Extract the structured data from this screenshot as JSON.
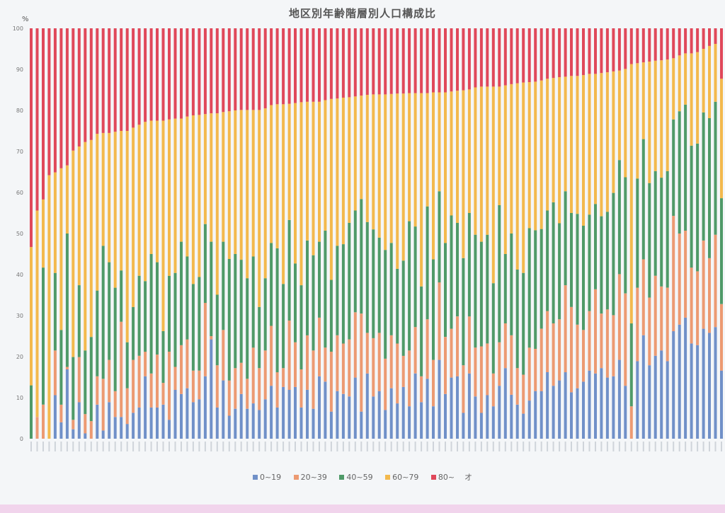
{
  "chart_data": {
    "type": "bar",
    "stacked": true,
    "title": "地区別年齢階層別人口構成比",
    "ylabel": "%",
    "xlabel": "",
    "ylim": [
      0,
      100
    ],
    "yticks": [
      "0",
      "10",
      "20",
      "30",
      "40",
      "50",
      "60",
      "70",
      "80",
      "90",
      "100"
    ],
    "legend_position": "bottom",
    "legend_suffix": "オ",
    "colors": {
      "0~19": "#7090c8",
      "20~39": "#ec9a72",
      "40~59": "#4f9a68",
      "60~79": "#f3b94d",
      "80~": "#e0485a"
    },
    "series_names": [
      "0~19",
      "20~39",
      "40~59",
      "60~79",
      "80~"
    ],
    "bars": [
      [
        0,
        0,
        13,
        33.7,
        53.3
      ],
      [
        0,
        5.3,
        0,
        50.3,
        44.4
      ],
      [
        0,
        8.3,
        33.4,
        16.6,
        41.7
      ],
      [
        0,
        0,
        0,
        64.2,
        35.8
      ],
      [
        10.6,
        10.9,
        18.9,
        24.5,
        35.1
      ],
      [
        4,
        4.3,
        18.2,
        39.4,
        34.1
      ],
      [
        16.9,
        0.6,
        32.5,
        16.6,
        33.4
      ],
      [
        2.3,
        2.3,
        15.3,
        50.3,
        29.8
      ],
      [
        8.9,
        11,
        17.5,
        33.8,
        28.8
      ],
      [
        1.3,
        4.7,
        15.5,
        50.8,
        27.7
      ],
      [
        0,
        4.3,
        20.5,
        48,
        27.2
      ],
      [
        8.3,
        6.9,
        20.9,
        38.2,
        25.7
      ],
      [
        2,
        12.6,
        32.4,
        27.5,
        25.5
      ],
      [
        8.9,
        10.3,
        23.8,
        31.5,
        25.5
      ],
      [
        5.3,
        6.3,
        25.2,
        38,
        25.2
      ],
      [
        5.3,
        23.2,
        12.5,
        34,
        25
      ],
      [
        3.6,
        8.7,
        11.2,
        51.5,
        25
      ],
      [
        6.3,
        12.9,
        12.9,
        43.7,
        24.2
      ],
      [
        7.6,
        12.6,
        19.5,
        36.8,
        23.5
      ],
      [
        15.2,
        6,
        17.2,
        38.8,
        22.8
      ],
      [
        7.6,
        8.3,
        29.1,
        32.5,
        22.5
      ],
      [
        7.6,
        12.9,
        22.5,
        34.5,
        22.5
      ],
      [
        8.3,
        5.3,
        12.6,
        51.3,
        22.5
      ],
      [
        4.6,
        16.6,
        18.5,
        38.1,
        22.2
      ],
      [
        11.9,
        5.6,
        22.9,
        37.6,
        22
      ],
      [
        10.9,
        11.9,
        25.2,
        30,
        22
      ],
      [
        12.3,
        11.9,
        20.2,
        34.1,
        21.5
      ],
      [
        8.9,
        7.7,
        21.1,
        41.1,
        21.2
      ],
      [
        9.6,
        7,
        22.8,
        39.5,
        21.1
      ],
      [
        15.2,
        17.9,
        19.2,
        26.8,
        20.9
      ],
      [
        24.2,
        0.8,
        23,
        31.3,
        20.7
      ],
      [
        7.6,
        10.3,
        17.2,
        44.2,
        20.7
      ],
      [
        14.2,
        12.3,
        21.5,
        31.6,
        20.4
      ],
      [
        5.6,
        8.6,
        29.6,
        36,
        20.2
      ],
      [
        7.3,
        9.9,
        27.8,
        35,
        20
      ],
      [
        10.9,
        7.6,
        25.1,
        36.5,
        19.9
      ],
      [
        7.3,
        7.3,
        24.5,
        41,
        19.9
      ],
      [
        8.6,
        13.6,
        22.2,
        35.7,
        19.9
      ],
      [
        7,
        10.2,
        14.9,
        48,
        19.9
      ],
      [
        9.6,
        11.9,
        17.6,
        41.4,
        19.5
      ],
      [
        12.9,
        14.6,
        20.2,
        33.6,
        18.7
      ],
      [
        7.6,
        8.6,
        30.2,
        35.1,
        18.5
      ],
      [
        12.6,
        4.6,
        20.5,
        43.8,
        18.5
      ],
      [
        11.9,
        16.9,
        24.5,
        28.3,
        18.4
      ],
      [
        12.6,
        10.9,
        19.2,
        39.1,
        18.2
      ],
      [
        7.6,
        9.3,
        20.5,
        44.6,
        18
      ],
      [
        11.9,
        13.3,
        23.1,
        33.8,
        17.9
      ],
      [
        7.3,
        14.2,
        23.2,
        37.4,
        17.9
      ],
      [
        15.2,
        14.3,
        18.5,
        34.1,
        17.9
      ],
      [
        13.9,
        8.3,
        28.5,
        31.8,
        17.5
      ],
      [
        6.6,
        14.6,
        17.5,
        44.1,
        17.2
      ],
      [
        11.6,
        13.6,
        21.8,
        35.9,
        17.1
      ],
      [
        10.9,
        12.3,
        24.2,
        35.7,
        16.9
      ],
      [
        10.3,
        13.9,
        28.4,
        30.6,
        16.8
      ],
      [
        14.9,
        15.9,
        24.8,
        27.8,
        16.6
      ],
      [
        6.6,
        23.9,
        27.9,
        25.2,
        16.4
      ],
      [
        15.9,
        9.9,
        27,
        31,
        16.2
      ],
      [
        10.3,
        14.2,
        26.5,
        32.9,
        16.1
      ],
      [
        11.6,
        14.2,
        23.2,
        34.9,
        16.1
      ],
      [
        7,
        12.5,
        26.5,
        37.9,
        16.1
      ],
      [
        12.3,
        12.9,
        22.5,
        36.3,
        16
      ],
      [
        8.6,
        14.6,
        18.2,
        42.7,
        15.9
      ],
      [
        12.6,
        7.6,
        23.2,
        40.7,
        15.9
      ],
      [
        7.9,
        13.6,
        31.5,
        31.2,
        15.8
      ],
      [
        15.9,
        11.3,
        24.5,
        32.5,
        15.8
      ],
      [
        8.9,
        6.3,
        21.9,
        47.1,
        15.8
      ],
      [
        14.6,
        14.5,
        27.5,
        27.6,
        15.8
      ],
      [
        7.9,
        11.3,
        24.5,
        40.7,
        15.6
      ],
      [
        19.2,
        18.9,
        22.2,
        24.1,
        15.6
      ],
      [
        10.9,
        13.9,
        22.9,
        36.7,
        15.6
      ],
      [
        14.9,
        11.9,
        27.6,
        30.2,
        15.4
      ],
      [
        15.2,
        14.6,
        22.8,
        32.2,
        15.2
      ],
      [
        6.3,
        11.6,
        26.1,
        40.9,
        15.1
      ],
      [
        15.9,
        13.9,
        25.2,
        30.1,
        14.9
      ],
      [
        10.3,
        11.9,
        27.5,
        35.9,
        14.4
      ],
      [
        6.3,
        16.2,
        25.5,
        37.8,
        14.2
      ],
      [
        10.6,
        12.6,
        26.5,
        36.1,
        14.2
      ],
      [
        7.9,
        8,
        22,
        47.9,
        14.2
      ],
      [
        12.9,
        10.6,
        33.4,
        28.9,
        14.2
      ],
      [
        17.2,
        10.9,
        16.9,
        41.1,
        13.9
      ],
      [
        10.7,
        14.5,
        24.8,
        36.4,
        13.6
      ],
      [
        8.3,
        8.9,
        24,
        45.4,
        13.4
      ],
      [
        6.1,
        9.5,
        24.8,
        46.4,
        13.2
      ],
      [
        9.3,
        12.9,
        29.1,
        35.6,
        13.1
      ],
      [
        11.6,
        10.3,
        28.9,
        36.2,
        13
      ],
      [
        11.6,
        15.2,
        24.3,
        36.2,
        12.7
      ],
      [
        16.2,
        14.9,
        24.5,
        32.1,
        12.3
      ],
      [
        12.9,
        15.2,
        29.5,
        30.3,
        12.1
      ],
      [
        14.2,
        14.9,
        23.4,
        35.6,
        11.9
      ],
      [
        16.2,
        21.2,
        22.9,
        27.9,
        11.8
      ],
      [
        11.3,
        20.8,
        22.9,
        33.4,
        11.6
      ],
      [
        12.3,
        15.5,
        27,
        33.6,
        11.6
      ],
      [
        13.9,
        12.6,
        25.4,
        36.7,
        11.4
      ],
      [
        16.6,
        14.5,
        23.5,
        34.3,
        11.1
      ],
      [
        15.9,
        20.5,
        20.8,
        31.7,
        11.1
      ],
      [
        17.2,
        13.3,
        23.7,
        34.9,
        10.9
      ],
      [
        14.9,
        16.6,
        23.8,
        34,
        10.7
      ],
      [
        15.2,
        14.9,
        29.8,
        29.6,
        10.5
      ],
      [
        19.2,
        20.9,
        27.8,
        21.8,
        10.3
      ],
      [
        12.9,
        22.5,
        28.3,
        26.4,
        9.9
      ],
      [
        0,
        7.9,
        20.2,
        63.2,
        8.7
      ],
      [
        18.9,
        17.9,
        26.6,
        28.1,
        8.5
      ],
      [
        25.2,
        18.5,
        29.3,
        18.7,
        8.3
      ],
      [
        17.9,
        16.5,
        27.9,
        29.6,
        8.1
      ],
      [
        20.2,
        19.5,
        25.5,
        26.9,
        7.9
      ],
      [
        21.5,
        15.6,
        26.5,
        28.6,
        7.8
      ],
      [
        18.9,
        17.9,
        28.4,
        27.2,
        7.6
      ],
      [
        26.2,
        28.1,
        23.5,
        14.9,
        7.3
      ],
      [
        27.8,
        22.2,
        29.8,
        13.6,
        6.6
      ],
      [
        29.5,
        21.2,
        30.7,
        12.5,
        6.1
      ],
      [
        23.2,
        18.5,
        29.7,
        22.5,
        6.1
      ],
      [
        22.8,
        18,
        31.1,
        22.3,
        5.8
      ],
      [
        26.8,
        21.5,
        31.2,
        15.5,
        5
      ],
      [
        25.8,
        18.2,
        34.1,
        17.6,
        4.3
      ],
      [
        27.2,
        22.5,
        32.4,
        14.1,
        3.8
      ],
      [
        16.6,
        16.2,
        25.8,
        29.1,
        12.3
      ]
    ]
  }
}
